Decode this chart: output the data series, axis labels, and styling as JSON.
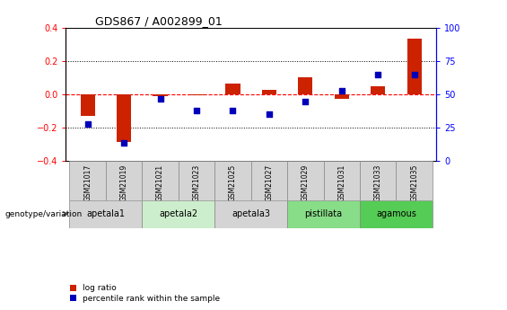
{
  "title": "GDS867 / A002899_01",
  "samples": [
    "GSM21017",
    "GSM21019",
    "GSM21021",
    "GSM21023",
    "GSM21025",
    "GSM21027",
    "GSM21029",
    "GSM21031",
    "GSM21033",
    "GSM21035"
  ],
  "log_ratio": [
    -0.13,
    -0.285,
    -0.01,
    -0.005,
    0.065,
    0.03,
    0.105,
    -0.025,
    0.05,
    0.335
  ],
  "percentile_rank": [
    28,
    14,
    47,
    38,
    38,
    35,
    45,
    53,
    65,
    65
  ],
  "groups": [
    {
      "label": "apetala1",
      "samples": [
        0,
        1
      ],
      "color": "#d4d4d4"
    },
    {
      "label": "apetala2",
      "samples": [
        2,
        3
      ],
      "color": "#cceecc"
    },
    {
      "label": "apetala3",
      "samples": [
        4,
        5
      ],
      "color": "#d4d4d4"
    },
    {
      "label": "pistillata",
      "samples": [
        6,
        7
      ],
      "color": "#88dd88"
    },
    {
      "label": "agamous",
      "samples": [
        8,
        9
      ],
      "color": "#55cc55"
    }
  ],
  "ylim_left": [
    -0.4,
    0.4
  ],
  "ylim_right": [
    0,
    100
  ],
  "yticks_left": [
    -0.4,
    -0.2,
    0.0,
    0.2,
    0.4
  ],
  "yticks_right": [
    0,
    25,
    50,
    75,
    100
  ],
  "bar_color_red": "#cc2200",
  "dot_color_blue": "#0000bb",
  "legend_red": "log ratio",
  "legend_blue": "percentile rank within the sample",
  "genotype_label": "genotype/variation"
}
